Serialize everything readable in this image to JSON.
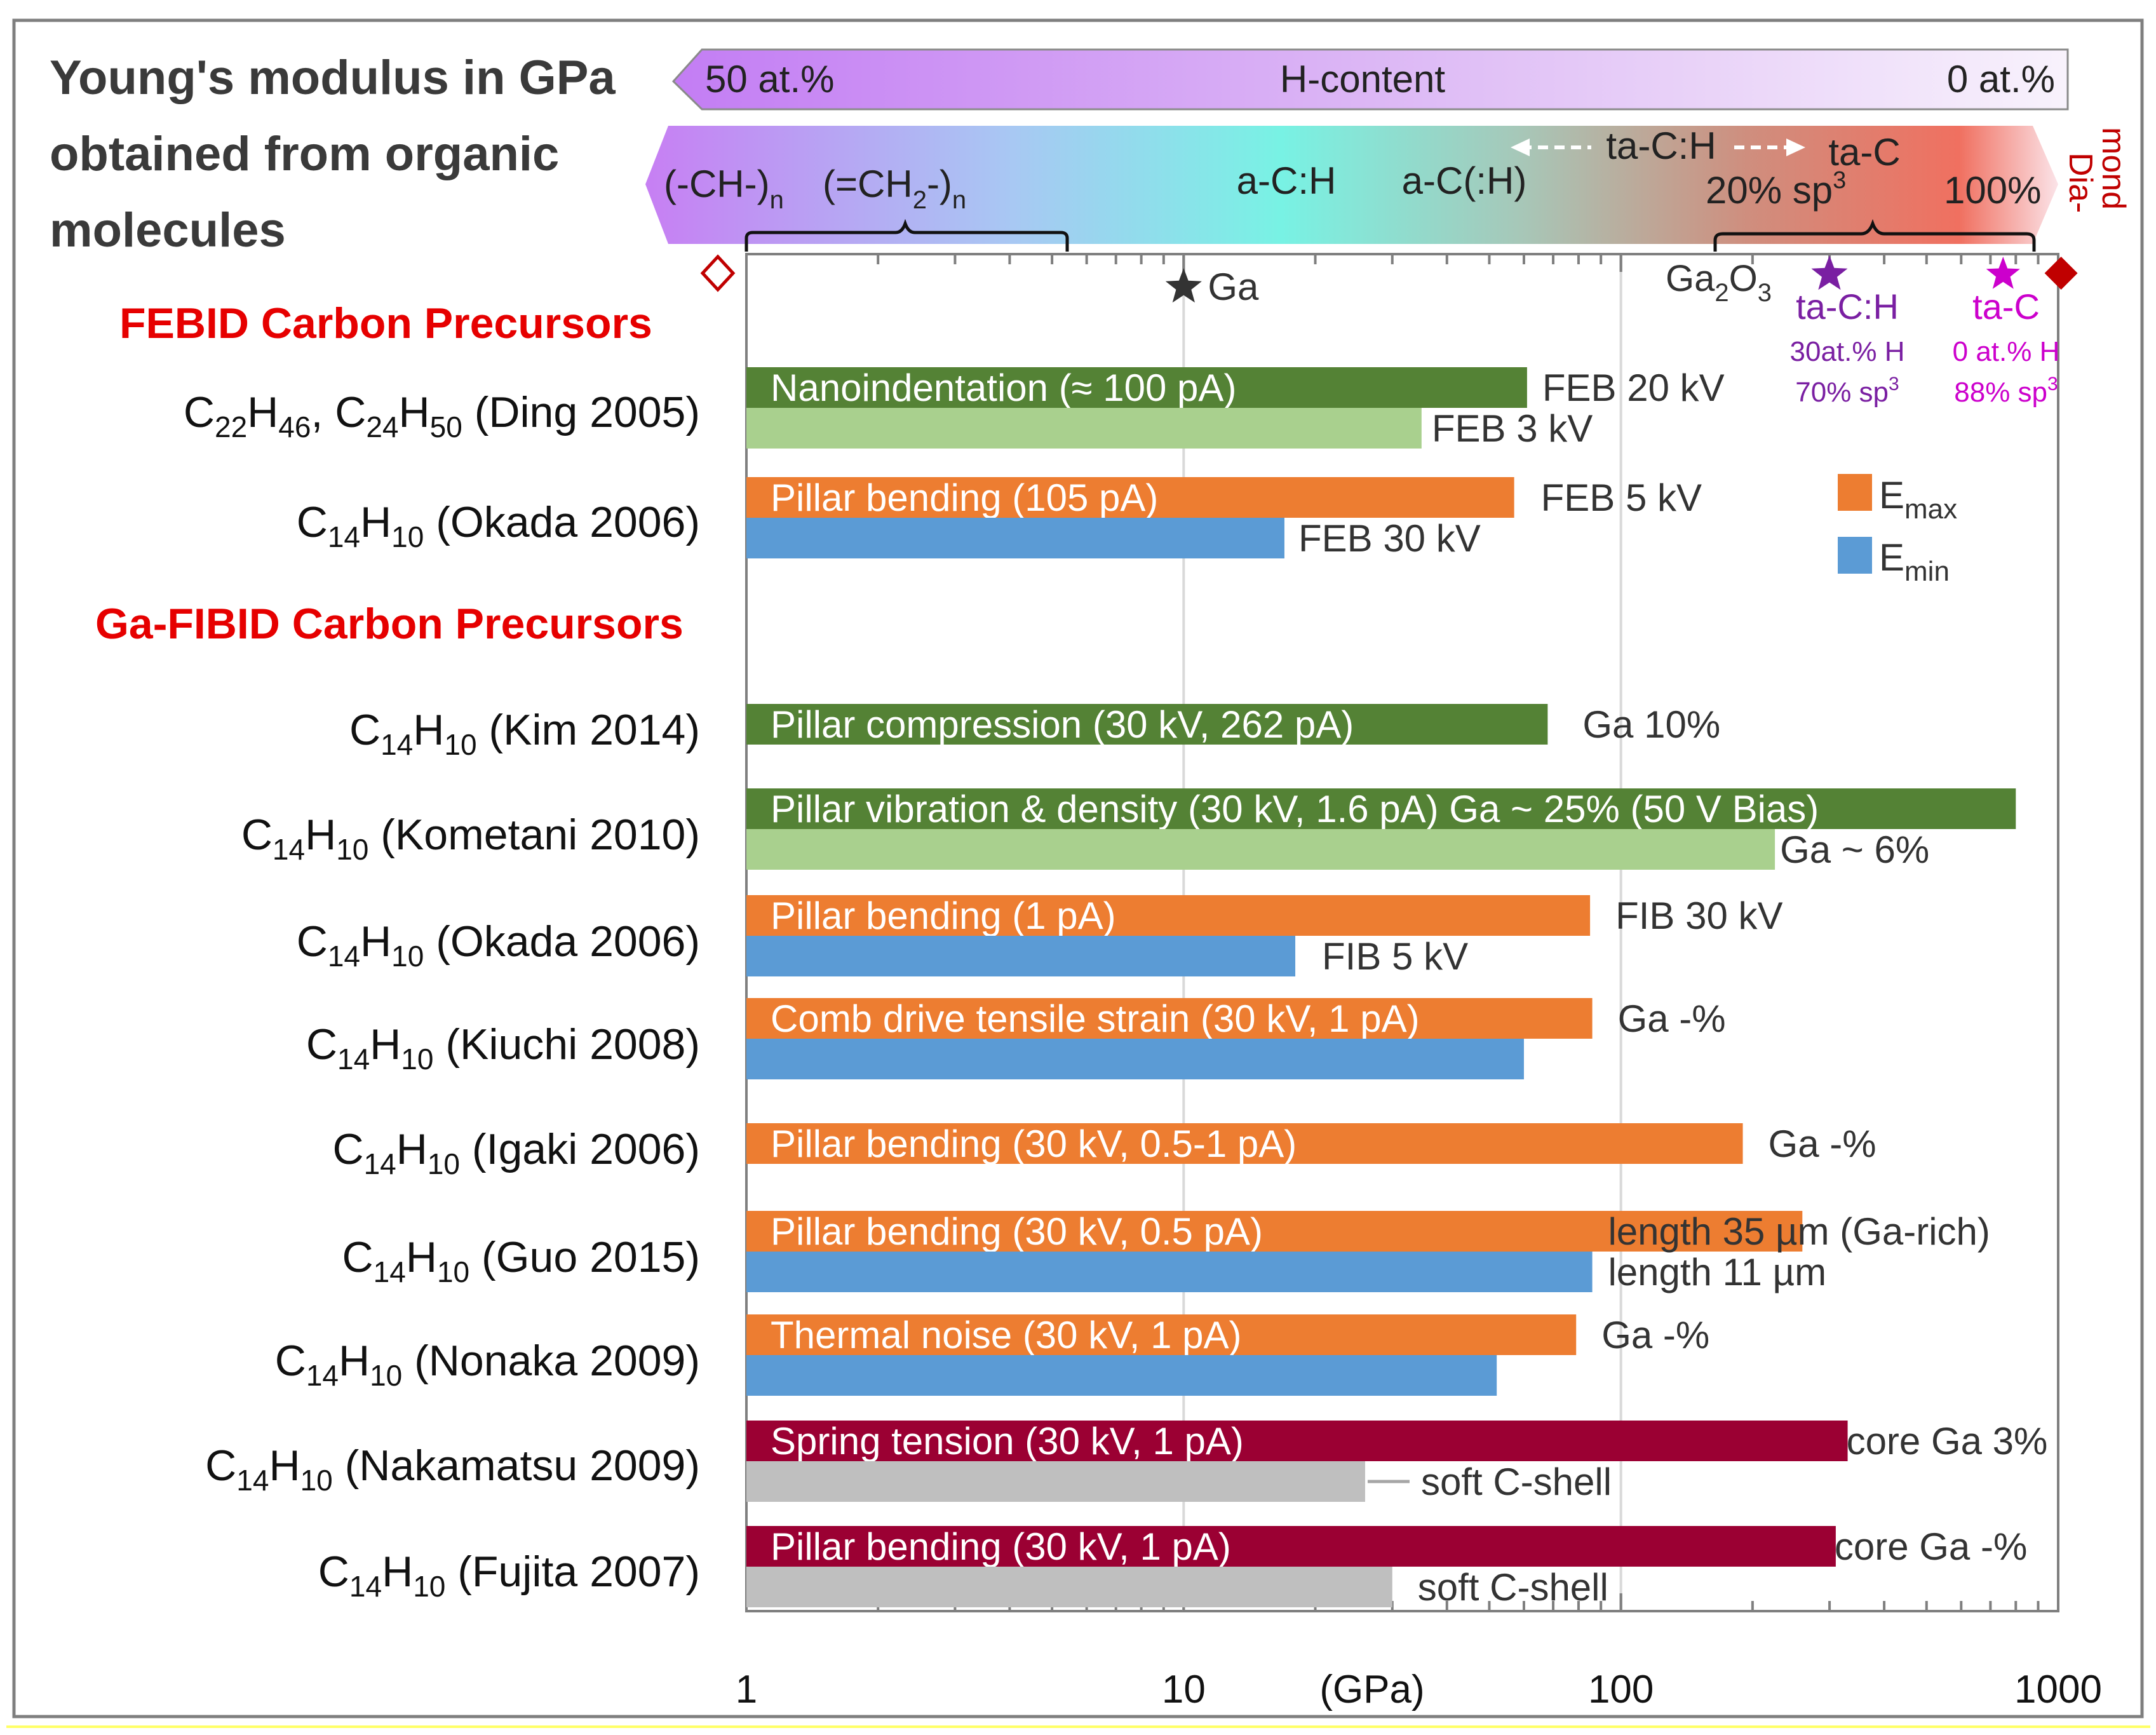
{
  "title": [
    "Young's modulus in GPa",
    "obtained from organic",
    "molecules"
  ],
  "h_content": {
    "label": "H-content",
    "left": "50 at.%",
    "right": "0 at.%"
  },
  "spectrum": {
    "ch": "(-CH-)",
    "ch_sub": "n",
    "ch2_pre": "(=CH",
    "ch2_sub2": "2",
    "ch2_post": "-)",
    "ch2_sub": "n",
    "ach": "a-C:H",
    "ac": "a-C(:H)",
    "tach": "ta-C:H",
    "tac": "ta-C",
    "sp3_20": "20% sp",
    "sp3_100": "100%",
    "sup3": "3",
    "diamond_1": "Dia-",
    "diamond_2": "mond"
  },
  "reference_markers": {
    "ga": "Ga",
    "ga2o3_pre": "Ga",
    "ga2o3_sub1": "2",
    "ga2o3_mid": "O",
    "ga2o3_sub2": "3",
    "tach_name": "ta-C:H",
    "tach_l1": "30at.% H",
    "tach_l2": "70% sp",
    "tac_name": "ta-C",
    "tac_l1": "0 at.% H",
    "tac_l2": "88% sp",
    "sup3": "3"
  },
  "sections": {
    "febid": "FEBID Carbon Precursors",
    "fibid": "Ga-FIBID Carbon Precursors"
  },
  "legend": {
    "emax_pre": "E",
    "emax_sub": "max",
    "emin_pre": "E",
    "emin_sub": "min"
  },
  "x_axis": {
    "ticks": [
      "1",
      "10",
      "100",
      "1000"
    ],
    "unit": "(GPa)"
  },
  "colors": {
    "dark_green": "#548235",
    "light_green": "#a9d08e",
    "orange": "#ed7d31",
    "blue": "#5b9bd5",
    "crimson": "#9b0033",
    "gray": "#bfbfbf",
    "section_red": "#e60000",
    "tach_purple": "#7a1fa2",
    "tac_magenta": "#cc00cc",
    "diamond_red": "#c00000"
  },
  "chart_data": {
    "type": "bar",
    "orientation": "horizontal",
    "title": "Young's modulus in GPa obtained from organic molecules",
    "x_scale": "log",
    "xlim": [
      1,
      1000
    ],
    "xlabel": "(GPa)",
    "legend": [
      "E_max",
      "E_min"
    ],
    "reference_points": [
      {
        "name": "Ga",
        "value": 10
      },
      {
        "name": "Ga2O3",
        "value": 290
      },
      {
        "name": "ta-C:H",
        "value": 290,
        "note": "30at.% H, 70% sp3"
      },
      {
        "name": "ta-C",
        "value": 800,
        "note": "0 at.% H, 88% sp3"
      },
      {
        "name": "Diamond",
        "value": 1050
      }
    ],
    "rows": [
      {
        "label_parts": [
          "C",
          "22",
          "H",
          "46",
          ", C",
          "24",
          "H",
          "50",
          " (Ding 2005)"
        ],
        "section": "FEBID",
        "bars": [
          {
            "value": 61,
            "color": "dark_green",
            "text": "Nanoindentation (≈ 100 pA)",
            "note": "FEB 20 kV"
          },
          {
            "value": 35,
            "color": "light_green",
            "text": "",
            "note": "FEB 3 kV"
          }
        ]
      },
      {
        "label_parts": [
          "C",
          "14",
          "H",
          "10",
          "  (Okada 2006)"
        ],
        "section": "FEBID",
        "bars": [
          {
            "value": 57,
            "color": "orange",
            "text": "Pillar bending (105 pA)",
            "note": "FEB 5 kV"
          },
          {
            "value": 17,
            "color": "blue",
            "text": "",
            "note": "FEB 30 kV"
          }
        ]
      },
      {
        "label_parts": [
          "C",
          "14",
          "H",
          "10",
          "  (Kim 2014)"
        ],
        "section": "Ga-FIBID",
        "bars": [
          {
            "value": 68,
            "color": "dark_green",
            "text": "Pillar compression (30 kV, 262 pA)",
            "note": "Ga 10%"
          }
        ]
      },
      {
        "label_parts": [
          "C",
          "14",
          "H",
          "10",
          "  (Kometani 2010)"
        ],
        "section": "Ga-FIBID",
        "bars": [
          {
            "value": 800,
            "color": "dark_green",
            "text": "Pillar vibration & density (30 kV, 1.6 pA)   Ga ~ 25% (50 V Bias)",
            "note": ""
          },
          {
            "value": 225,
            "color": "light_green",
            "text": "",
            "note": "Ga ~ 6%"
          }
        ]
      },
      {
        "label_parts": [
          "C",
          "14",
          "H",
          "10",
          "  (Okada 2006)"
        ],
        "section": "Ga-FIBID",
        "bars": [
          {
            "value": 85,
            "color": "orange",
            "text": "Pillar bending (1 pA)",
            "note": "FIB 30 kV"
          },
          {
            "value": 18,
            "color": "blue",
            "text": "",
            "note": "FIB 5 kV"
          }
        ]
      },
      {
        "label_parts": [
          "C",
          "14",
          "H",
          "10",
          "  (Kiuchi 2008)"
        ],
        "section": "Ga-FIBID",
        "bars": [
          {
            "value": 86,
            "color": "orange",
            "text": "Comb drive tensile strain (30 kV, 1 pA)",
            "note": "Ga -%"
          },
          {
            "value": 60,
            "color": "blue",
            "text": "",
            "note": ""
          }
        ]
      },
      {
        "label_parts": [
          "C",
          "14",
          "H",
          "10",
          "  (Igaki 2006)"
        ],
        "section": "Ga-FIBID",
        "bars": [
          {
            "value": 190,
            "color": "orange",
            "text": "Pillar bending (30 kV, 0.5-1 pA)",
            "note": "Ga -%"
          }
        ]
      },
      {
        "label_parts": [
          "C",
          "14",
          "H",
          "10",
          "  (Guo 2015)"
        ],
        "section": "Ga-FIBID",
        "bars": [
          {
            "value": 260,
            "color": "orange",
            "text": "Pillar bending (30 kV, 0.5 pA)",
            "note": "length 35 µm (Ga-rich)"
          },
          {
            "value": 86,
            "color": "blue",
            "text": "",
            "note": "length 11 µm"
          }
        ]
      },
      {
        "label_parts": [
          "C",
          "14",
          "H",
          "10",
          "  (Nonaka 2009)"
        ],
        "section": "Ga-FIBID",
        "bars": [
          {
            "value": 79,
            "color": "orange",
            "text": "Thermal noise (30 kV, 1 pA)",
            "note": "Ga -%"
          },
          {
            "value": 52,
            "color": "blue",
            "text": "",
            "note": ""
          }
        ]
      },
      {
        "label_parts": [
          "C",
          "14",
          "H",
          "10",
          "  (Nakamatsu 2009)"
        ],
        "section": "Ga-FIBID",
        "bars": [
          {
            "value": 330,
            "color": "crimson",
            "text": "Spring tension (30 kV, 1 pA)",
            "note": "core Ga 3%"
          },
          {
            "value": 26,
            "color": "gray",
            "text": "",
            "note": "soft C-shell"
          }
        ]
      },
      {
        "label_parts": [
          "C",
          "14",
          "H",
          "10",
          "  (Fujita 2007)"
        ],
        "section": "Ga-FIBID",
        "bars": [
          {
            "value": 310,
            "color": "crimson",
            "text": "Pillar bending (30 kV, 1 pA)",
            "note": "core Ga -%"
          },
          {
            "value": 30,
            "color": "gray",
            "text": "",
            "note": "soft C-shell"
          }
        ]
      }
    ]
  }
}
